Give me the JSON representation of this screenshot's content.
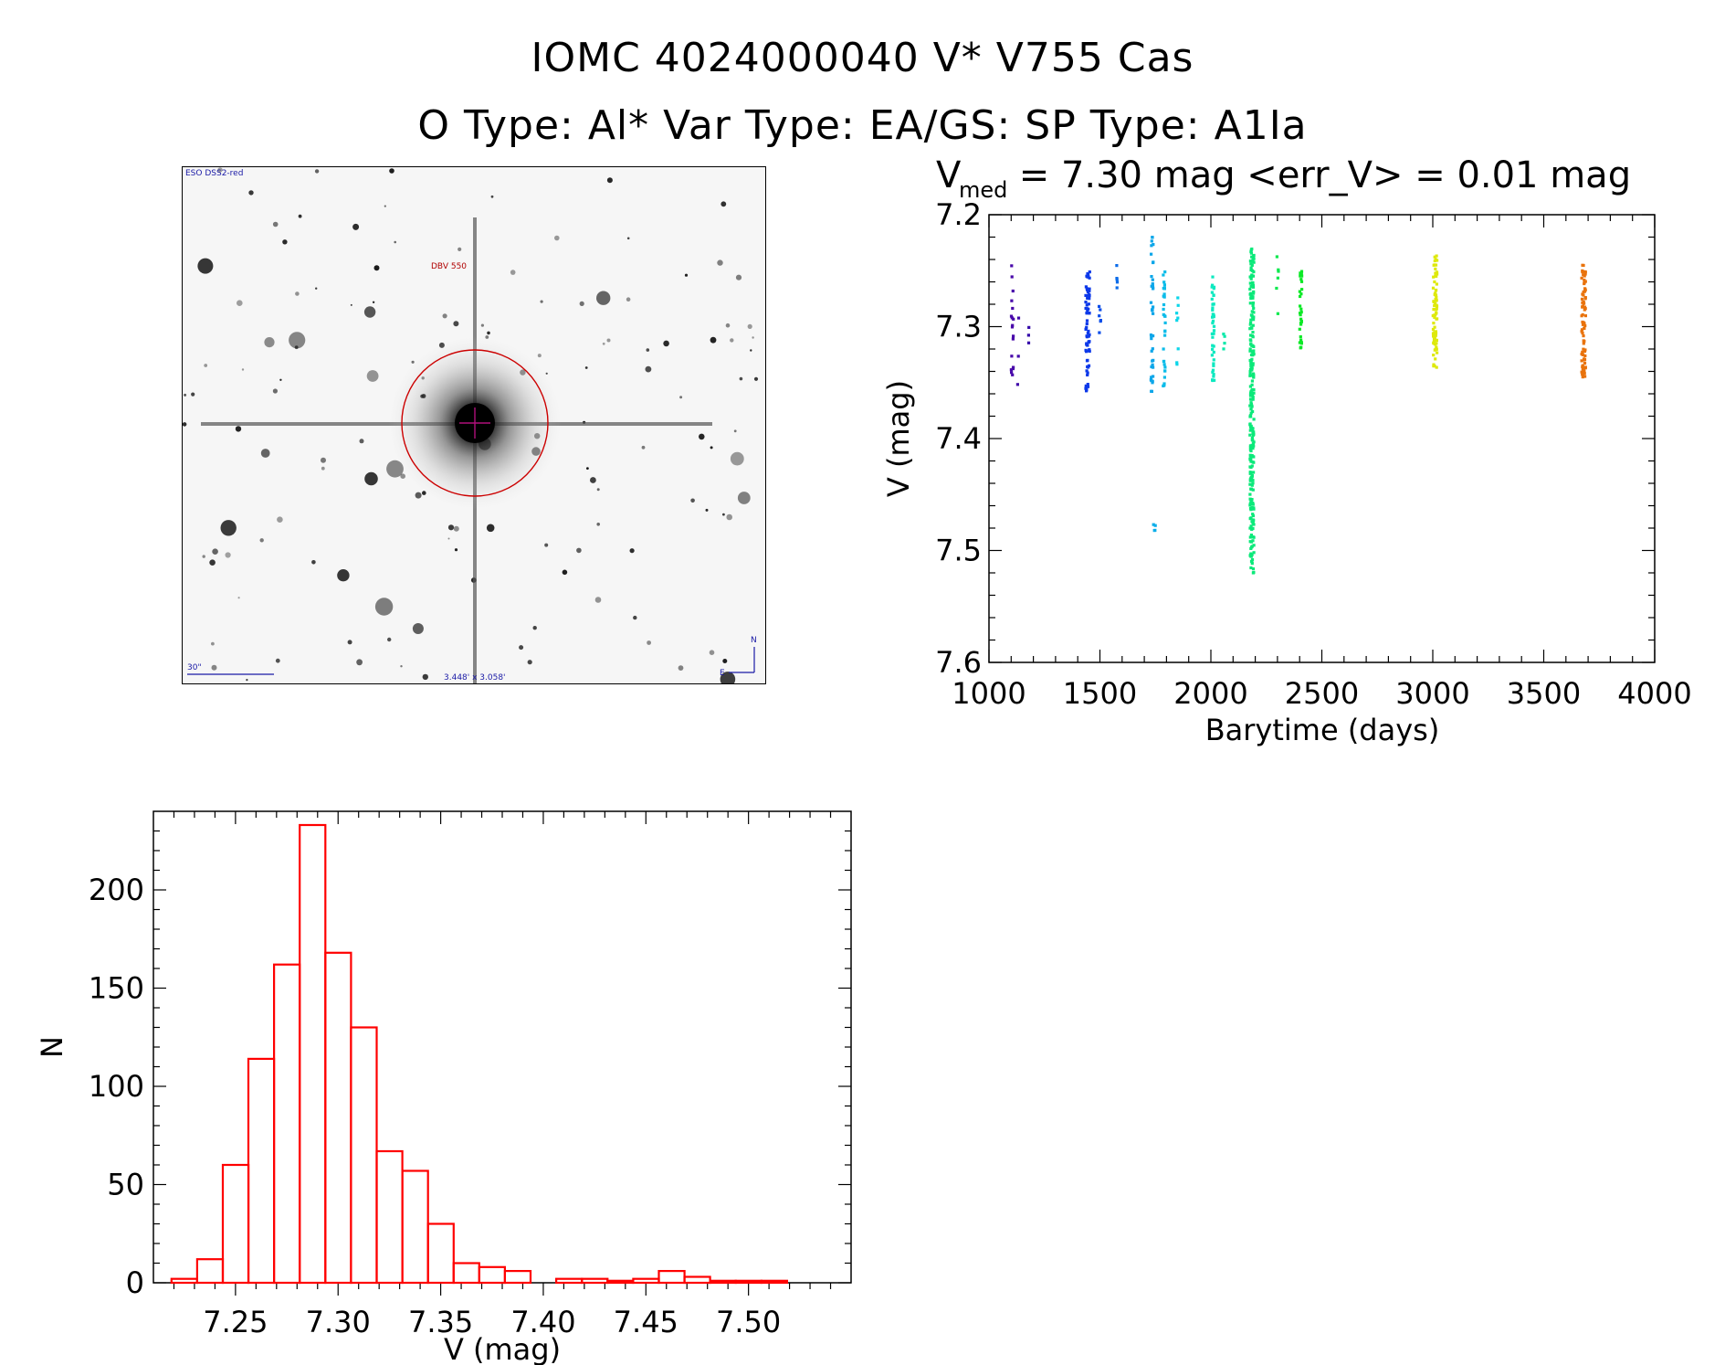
{
  "header": {
    "title_line1": "IOMC 4024000040    V* V755 Cas",
    "title_line2": "O Type: Al*  Var Type: EA/GS:  SP Type: A1Ia"
  },
  "image_panel": {
    "survey_label": "ESO DSS2-red",
    "target_label": "DBV 550",
    "scale_label": "30\"",
    "fov_label": "3.448' x 3.058'",
    "compass_n": "N",
    "compass_e": "E"
  },
  "colors": {
    "histogram": "#ff0000",
    "circle": "#cc0000",
    "annotation": "#1a1aa6",
    "crosshair": "#b0107a"
  },
  "chart_data": [
    {
      "type": "scatter",
      "title_main": "V",
      "title_sub": "med",
      "title_rest": " = 7.30 mag <err_V> = 0.01 mag",
      "xlabel": "Barytime (days)",
      "ylabel": "V (mag)",
      "xlim": [
        1000,
        4000
      ],
      "ylim": [
        7.2,
        7.6
      ],
      "y_inverted": true,
      "xticks": [
        "1000",
        "1500",
        "2000",
        "2500",
        "3000",
        "3500",
        "4000"
      ],
      "yticks": [
        "7.2",
        "7.3",
        "7.4",
        "7.5",
        "7.6"
      ],
      "color_scale": "rainbow by time",
      "clusters": [
        {
          "x": 1105,
          "y_min": 7.245,
          "y_max": 7.345,
          "n": 18
        },
        {
          "x": 1130,
          "y_min": 7.29,
          "y_max": 7.355,
          "n": 3
        },
        {
          "x": 1180,
          "y_min": 7.295,
          "y_max": 7.32,
          "n": 3
        },
        {
          "x": 1445,
          "y_min": 7.25,
          "y_max": 7.365,
          "n": 70
        },
        {
          "x": 1500,
          "y_min": 7.27,
          "y_max": 7.34,
          "n": 6
        },
        {
          "x": 1575,
          "y_min": 7.245,
          "y_max": 7.28,
          "n": 5
        },
        {
          "x": 1735,
          "y_min": 7.22,
          "y_max": 7.36,
          "n": 40
        },
        {
          "x": 1745,
          "y_min": 7.46,
          "y_max": 7.495,
          "n": 4
        },
        {
          "x": 1790,
          "y_min": 7.25,
          "y_max": 7.355,
          "n": 30
        },
        {
          "x": 1850,
          "y_min": 7.27,
          "y_max": 7.34,
          "n": 8
        },
        {
          "x": 2010,
          "y_min": 7.255,
          "y_max": 7.35,
          "n": 40
        },
        {
          "x": 2060,
          "y_min": 7.3,
          "y_max": 7.32,
          "n": 4
        },
        {
          "x": 2185,
          "y_min": 7.23,
          "y_max": 7.52,
          "n": 260
        },
        {
          "x": 2300,
          "y_min": 7.235,
          "y_max": 7.295,
          "n": 6
        },
        {
          "x": 2405,
          "y_min": 7.25,
          "y_max": 7.32,
          "n": 30
        },
        {
          "x": 3010,
          "y_min": 7.235,
          "y_max": 7.34,
          "n": 80
        },
        {
          "x": 3680,
          "y_min": 7.245,
          "y_max": 7.345,
          "n": 80
        }
      ]
    },
    {
      "type": "bar",
      "xlabel": "V (mag)",
      "ylabel": "N",
      "xlim": [
        7.21,
        7.55
      ],
      "ylim": [
        0,
        240
      ],
      "xticks": [
        "7.25",
        "7.30",
        "7.35",
        "7.40",
        "7.45",
        "7.50"
      ],
      "yticks": [
        "0",
        "50",
        "100",
        "150",
        "200"
      ],
      "bin_width": 0.0125,
      "bin_start": 7.2188,
      "values": [
        2,
        12,
        60,
        114,
        162,
        233,
        168,
        130,
        67,
        57,
        30,
        10,
        8,
        6,
        0,
        2,
        2,
        1,
        2,
        6,
        3,
        1,
        1,
        1
      ]
    }
  ]
}
